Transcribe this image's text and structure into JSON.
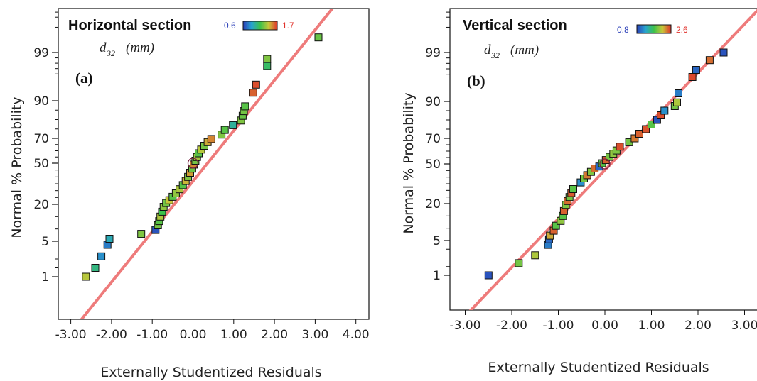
{
  "chart_data": [
    {
      "type": "scatter",
      "title": "Horizontal section",
      "panel_label": "(a)",
      "variable_label": "d",
      "variable_subscript": "32",
      "variable_unit": "(mm)",
      "color_min": "0.6",
      "color_max": "1.7",
      "xlabel": "Externally Studentized Residuals",
      "ylabel": "Normal % Probability",
      "xlim": [
        -3.5,
        4.5
      ],
      "x_ticks": [
        "-3.00",
        "-2.00",
        "-1.00",
        "0.00",
        "1.00",
        "2.00",
        "3.00",
        "4.00"
      ],
      "y_ticks": [
        "1",
        "5",
        "20",
        "50",
        "70",
        "90",
        "99"
      ],
      "reference_line": true,
      "colors": {
        "reference_line": "#ee7b7b",
        "low": "#2b3fb8",
        "high": "#e0302a"
      },
      "points": [
        {
          "x": -2.63,
          "y": 1.0,
          "c": 0.72
        },
        {
          "x": -2.4,
          "y": 2.0,
          "c": 0.4
        },
        {
          "x": -2.25,
          "y": 3.3,
          "c": 0.2
        },
        {
          "x": -2.1,
          "y": 4.6,
          "c": 0.15
        },
        {
          "x": -2.05,
          "y": 6.0,
          "c": 0.3
        },
        {
          "x": -1.27,
          "y": 8.0,
          "c": 0.62
        },
        {
          "x": -0.92,
          "y": 9.6,
          "c": 0.05
        },
        {
          "x": -0.86,
          "y": 11.5,
          "c": 0.6
        },
        {
          "x": -0.83,
          "y": 13.2,
          "c": 0.55
        },
        {
          "x": -0.8,
          "y": 15.0,
          "c": 0.7
        },
        {
          "x": -0.76,
          "y": 17.0,
          "c": 0.5
        },
        {
          "x": -0.72,
          "y": 19.0,
          "c": 0.65
        },
        {
          "x": -0.66,
          "y": 21.0,
          "c": 0.6
        },
        {
          "x": -0.58,
          "y": 23.0,
          "c": 0.75
        },
        {
          "x": -0.5,
          "y": 25.5,
          "c": 0.55
        },
        {
          "x": -0.42,
          "y": 28.0,
          "c": 0.65
        },
        {
          "x": -0.33,
          "y": 31.0,
          "c": 0.7
        },
        {
          "x": -0.25,
          "y": 34.0,
          "c": 0.55
        },
        {
          "x": -0.18,
          "y": 37.0,
          "c": 0.78
        },
        {
          "x": -0.12,
          "y": 40.0,
          "c": 0.62
        },
        {
          "x": -0.07,
          "y": 43.0,
          "c": 0.82
        },
        {
          "x": -0.02,
          "y": 46.0,
          "c": 0.58
        },
        {
          "x": 0.02,
          "y": 49.0,
          "c": 0.86
        },
        {
          "x": 0.06,
          "y": 52.0,
          "c": 0.6
        },
        {
          "x": 0.1,
          "y": 55.0,
          "c": 0.68
        },
        {
          "x": 0.14,
          "y": 58.0,
          "c": 0.55
        },
        {
          "x": 0.2,
          "y": 61.0,
          "c": 0.72
        },
        {
          "x": 0.28,
          "y": 64.0,
          "c": 0.6
        },
        {
          "x": 0.36,
          "y": 67.0,
          "c": 0.8
        },
        {
          "x": 0.45,
          "y": 69.5,
          "c": 0.86
        },
        {
          "x": 0.7,
          "y": 72.0,
          "c": 0.62
        },
        {
          "x": 0.78,
          "y": 74.5,
          "c": 0.55
        },
        {
          "x": 0.98,
          "y": 77.0,
          "c": 0.35
        },
        {
          "x": 1.18,
          "y": 79.5,
          "c": 0.62
        },
        {
          "x": 1.22,
          "y": 82.0,
          "c": 0.58
        },
        {
          "x": 1.25,
          "y": 84.5,
          "c": 0.6
        },
        {
          "x": 1.28,
          "y": 87.0,
          "c": 0.55
        },
        {
          "x": 1.48,
          "y": 91.5,
          "c": 0.92
        },
        {
          "x": 1.55,
          "y": 93.0,
          "c": 0.95
        },
        {
          "x": 1.82,
          "y": 96.5,
          "c": 0.45
        },
        {
          "x": 1.82,
          "y": 97.8,
          "c": 0.62
        },
        {
          "x": 3.08,
          "y": 99.3,
          "c": 0.58
        }
      ]
    },
    {
      "type": "scatter",
      "title": "Vertical section",
      "panel_label": "(b)",
      "variable_label": "d",
      "variable_subscript": "32",
      "variable_unit": "(mm)",
      "color_min": "0.8",
      "color_max": "2.6",
      "xlabel": "Externally Studentized Residuals",
      "ylabel": "Normal % Probability",
      "xlim": [
        -3.5,
        3.2
      ],
      "x_ticks": [
        "-3.00",
        "-2.00",
        "-1.00",
        "0.00",
        "1.00",
        "2.00",
        "3.00"
      ],
      "y_ticks": [
        "1",
        "5",
        "20",
        "50",
        "70",
        "90",
        "99"
      ],
      "reference_line": true,
      "colors": {
        "reference_line": "#ee7b7b",
        "low": "#2b3fb8",
        "high": "#e0302a"
      },
      "points": [
        {
          "x": -2.5,
          "y": 1.0,
          "c": 0.05
        },
        {
          "x": -1.85,
          "y": 2.4,
          "c": 0.6
        },
        {
          "x": -1.5,
          "y": 3.3,
          "c": 0.7
        },
        {
          "x": -1.22,
          "y": 4.5,
          "c": 0.15
        },
        {
          "x": -1.2,
          "y": 5.5,
          "c": 0.1
        },
        {
          "x": -1.18,
          "y": 7.0,
          "c": 0.8
        },
        {
          "x": -1.1,
          "y": 9.0,
          "c": 0.92
        },
        {
          "x": -1.05,
          "y": 11.0,
          "c": 0.55
        },
        {
          "x": -0.95,
          "y": 13.0,
          "c": 0.65
        },
        {
          "x": -0.9,
          "y": 15.0,
          "c": 0.55
        },
        {
          "x": -0.88,
          "y": 17.0,
          "c": 0.92
        },
        {
          "x": -0.84,
          "y": 19.5,
          "c": 0.62
        },
        {
          "x": -0.8,
          "y": 22.0,
          "c": 0.9
        },
        {
          "x": -0.76,
          "y": 25.0,
          "c": 0.6
        },
        {
          "x": -0.72,
          "y": 28.0,
          "c": 0.93
        },
        {
          "x": -0.68,
          "y": 31.0,
          "c": 0.55
        },
        {
          "x": -0.52,
          "y": 36.0,
          "c": 0.2
        },
        {
          "x": -0.45,
          "y": 39.0,
          "c": 0.6
        },
        {
          "x": -0.38,
          "y": 41.5,
          "c": 0.88
        },
        {
          "x": -0.3,
          "y": 44.0,
          "c": 0.62
        },
        {
          "x": -0.22,
          "y": 46.5,
          "c": 0.9
        },
        {
          "x": -0.12,
          "y": 48.0,
          "c": 0.1
        },
        {
          "x": -0.06,
          "y": 50.5,
          "c": 0.55
        },
        {
          "x": 0.02,
          "y": 53.0,
          "c": 0.92
        },
        {
          "x": 0.1,
          "y": 55.5,
          "c": 0.6
        },
        {
          "x": 0.18,
          "y": 58.0,
          "c": 0.65
        },
        {
          "x": 0.25,
          "y": 60.5,
          "c": 0.62
        },
        {
          "x": 0.32,
          "y": 63.5,
          "c": 0.95
        },
        {
          "x": 0.52,
          "y": 67.0,
          "c": 0.6
        },
        {
          "x": 0.64,
          "y": 70.0,
          "c": 0.88
        },
        {
          "x": 0.74,
          "y": 72.5,
          "c": 0.92
        },
        {
          "x": 0.88,
          "y": 75.0,
          "c": 0.94
        },
        {
          "x": 1.0,
          "y": 77.5,
          "c": 0.55
        },
        {
          "x": 1.12,
          "y": 80.0,
          "c": 0.05
        },
        {
          "x": 1.2,
          "y": 82.5,
          "c": 0.95
        },
        {
          "x": 1.28,
          "y": 85.0,
          "c": 0.2
        },
        {
          "x": 1.5,
          "y": 87.5,
          "c": 0.6
        },
        {
          "x": 1.55,
          "y": 89.5,
          "c": 0.7
        },
        {
          "x": 1.58,
          "y": 91.5,
          "c": 0.15
        },
        {
          "x": 1.88,
          "y": 94.5,
          "c": 0.96
        },
        {
          "x": 1.96,
          "y": 95.8,
          "c": 0.1
        },
        {
          "x": 2.25,
          "y": 97.6,
          "c": 0.9
        },
        {
          "x": 2.55,
          "y": 99.0,
          "c": 0.05
        }
      ]
    }
  ]
}
